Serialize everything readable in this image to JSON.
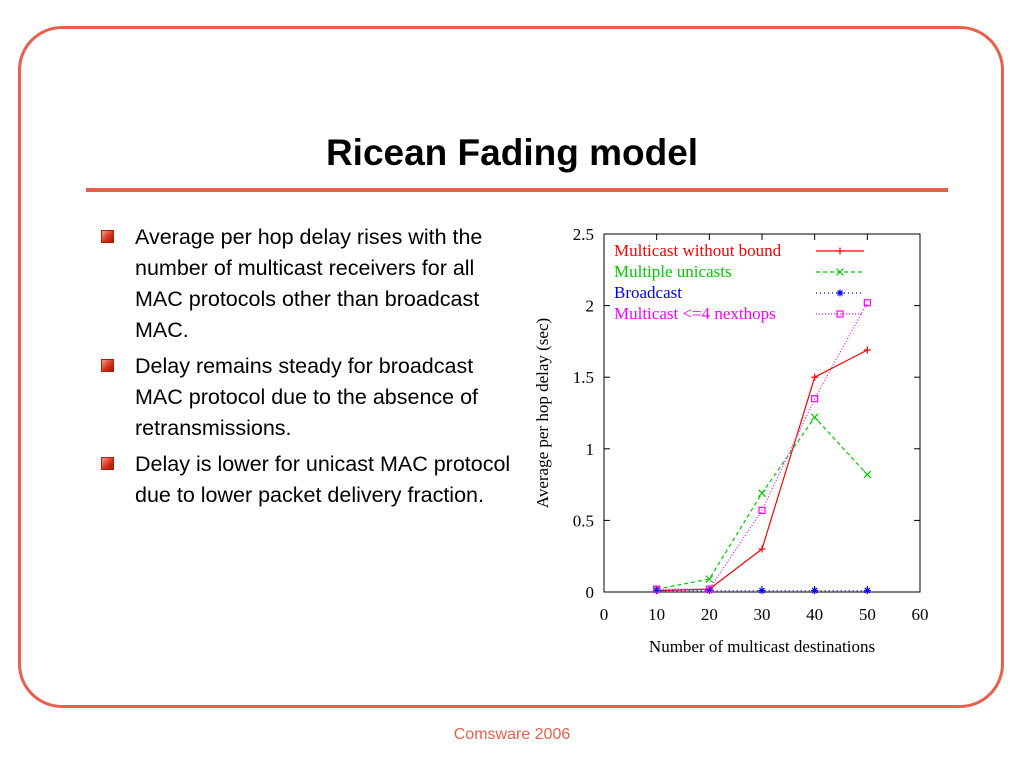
{
  "slide": {
    "title": "Ricean Fading model",
    "footer": "Comsware 2006",
    "bullets": [
      "Average per hop delay rises with the number of multicast receivers for all MAC protocols other than broadcast MAC.",
      "Delay remains steady for broadcast MAC protocol due to the absence of retransmissions.",
      "Delay is lower for unicast MAC protocol due to lower packet delivery fraction."
    ],
    "accent_color": "#e8604c"
  },
  "chart_data": {
    "type": "line",
    "xlabel": "Number of multicast destinations",
    "ylabel": "Average per hop delay (sec)",
    "xlim": [
      0,
      60
    ],
    "ylim": [
      0,
      2.5
    ],
    "x_ticks": [
      "0",
      "10",
      "20",
      "30",
      "40",
      "50",
      "60"
    ],
    "y_ticks": [
      "0",
      "0.5",
      "1",
      "1.5",
      "2",
      "2.5"
    ],
    "grid": false,
    "legend_position": "top-left",
    "x": [
      10,
      20,
      30,
      40,
      50
    ],
    "series": [
      {
        "name": "Multicast without bound",
        "color": "#ff0000",
        "marker": "+",
        "dash": "",
        "values": [
          0.01,
          0.02,
          0.3,
          1.5,
          1.69
        ]
      },
      {
        "name": "Multiple unicasts",
        "color": "#00cc00",
        "marker": "x",
        "dash": "4,3",
        "values": [
          0.02,
          0.09,
          0.69,
          1.22,
          0.82
        ]
      },
      {
        "name": "Broadcast",
        "color": "#0000ff",
        "marker": "*",
        "dash": "1,3",
        "values": [
          0.01,
          0.01,
          0.01,
          0.01,
          0.01
        ]
      },
      {
        "name": "Multicast <=4 nexthops",
        "color": "#ff00ff",
        "marker": "square",
        "dash": "1,2",
        "values": [
          0.02,
          0.02,
          0.57,
          1.35,
          2.02
        ]
      }
    ]
  }
}
